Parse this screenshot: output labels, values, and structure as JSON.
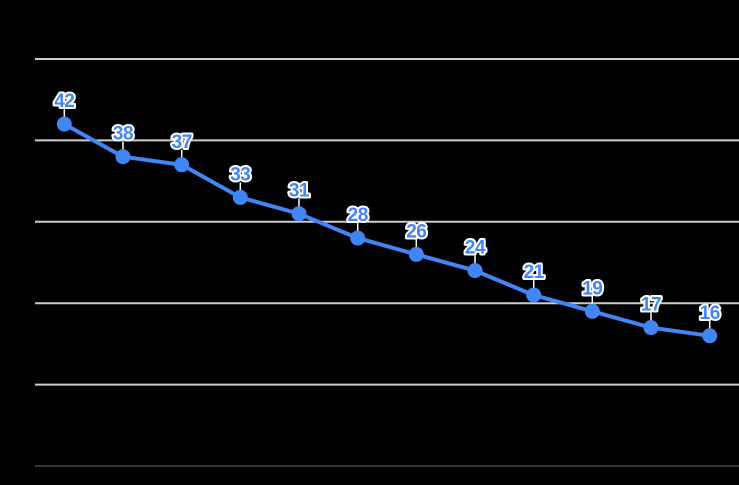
{
  "chart_data": {
    "type": "line",
    "title": "",
    "xlabel": "",
    "ylabel": "",
    "values": [
      42,
      38,
      37,
      33,
      31,
      28,
      26,
      24,
      21,
      19,
      17,
      16
    ],
    "point_labels": [
      "42",
      "38",
      "37",
      "33",
      "31",
      "28",
      "26",
      "24",
      "21",
      "19",
      "17",
      "16"
    ],
    "num_points": 12,
    "ylim": [
      0,
      50
    ],
    "grid_step": 10,
    "grid": true,
    "legend_position": "none",
    "axis_tick_labels_visible": false,
    "data_labels_visible": true
  },
  "style": {
    "background_color": "#000000",
    "series_color": "#4285f4",
    "gridline_color": "#cccccc",
    "baseline_color": "#333333",
    "data_label_color": "#4285f4",
    "data_label_outline_color": "#ffffff",
    "leader_line_color": "#ffffff"
  }
}
